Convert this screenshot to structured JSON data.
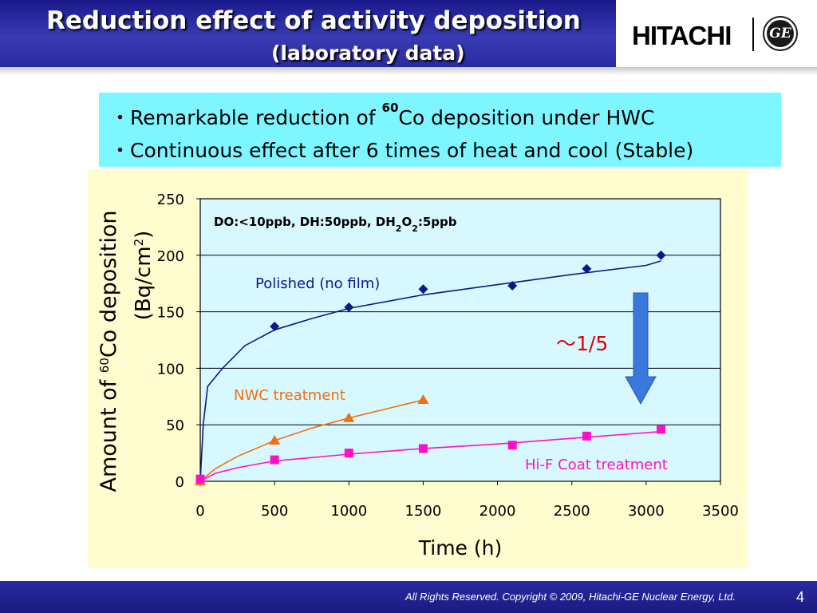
{
  "header": {
    "title_line1": "Reduction effect of activity deposition",
    "title_line2": "(laboratory data)",
    "logo_text": "HITACHI",
    "ge_logo": "GE"
  },
  "bullets": [
    {
      "prefix": "・Remarkable reduction of ",
      "sup": "60",
      "suffix": "Co deposition under HWC"
    },
    {
      "text": "・Continuous effect after 6 times of heat and cool (Stable)"
    }
  ],
  "footer": {
    "copyright": "All Rights Reserved. Copyright © 2009, Hitachi-GE Nuclear Energy, Ltd.",
    "page_number": "4"
  },
  "colors": {
    "polished": "#0a1a8a",
    "nwc": "#f07010",
    "hif": "#ff10c8",
    "arrow": "#3a78dc",
    "plot_bg": "#d8f8ff",
    "chart_bg": "#fffcd0"
  },
  "chart_data": {
    "type": "scatter",
    "xlabel": "Time (h)",
    "ylabel_line1": {
      "prefix": "Amount of ",
      "sup": "60",
      "suffix": "Co deposition"
    },
    "ylabel_line2": {
      "prefix": "(Bq/cm",
      "sup": "2",
      "suffix": ")"
    },
    "xlim": [
      0,
      3500
    ],
    "ylim": [
      0,
      250
    ],
    "x_ticks": [
      0,
      500,
      1000,
      1500,
      2000,
      2500,
      3000,
      3500
    ],
    "y_ticks": [
      0,
      50,
      100,
      150,
      200,
      250
    ],
    "grid": true,
    "annotations": {
      "condition": {
        "parts": [
          "DO:<10ppb, DH:50ppb, DH",
          "2",
          "O",
          "2",
          ":5ppb"
        ]
      },
      "reduction": "～1/5"
    },
    "series": [
      {
        "name": "Polished (no film)",
        "marker": "diamond",
        "color": "#0a1a8a",
        "points": [
          [
            0,
            0
          ],
          [
            500,
            137
          ],
          [
            1000,
            154
          ],
          [
            1500,
            170
          ],
          [
            2100,
            173
          ],
          [
            2600,
            188
          ],
          [
            3100,
            200
          ]
        ],
        "trend": [
          [
            0,
            0
          ],
          [
            20,
            50
          ],
          [
            50,
            84
          ],
          [
            150,
            100
          ],
          [
            300,
            120
          ],
          [
            500,
            134
          ],
          [
            750,
            144
          ],
          [
            1000,
            153
          ],
          [
            1500,
            165
          ],
          [
            2000,
            174
          ],
          [
            2500,
            183
          ],
          [
            3000,
            191
          ],
          [
            3100,
            195
          ]
        ]
      },
      {
        "name": "NWC treatment",
        "marker": "triangle",
        "color": "#f07010",
        "points": [
          [
            0,
            0
          ],
          [
            500,
            36
          ],
          [
            1000,
            56
          ],
          [
            1500,
            72
          ]
        ],
        "trend": [
          [
            0,
            0
          ],
          [
            100,
            11
          ],
          [
            250,
            22
          ],
          [
            500,
            36
          ],
          [
            750,
            47
          ],
          [
            1000,
            56
          ],
          [
            1250,
            64
          ],
          [
            1500,
            72
          ]
        ]
      },
      {
        "name": "Hi-F Coat treatment",
        "marker": "square",
        "color": "#ff10c8",
        "points": [
          [
            0,
            2
          ],
          [
            500,
            19
          ],
          [
            1000,
            25
          ],
          [
            1500,
            29
          ],
          [
            2100,
            32
          ],
          [
            2600,
            40
          ],
          [
            3100,
            46
          ]
        ],
        "trend": [
          [
            0,
            0
          ],
          [
            100,
            7
          ],
          [
            250,
            12
          ],
          [
            500,
            18
          ],
          [
            1000,
            24
          ],
          [
            1500,
            29
          ],
          [
            2000,
            33
          ],
          [
            2500,
            38
          ],
          [
            3100,
            44
          ]
        ]
      }
    ]
  }
}
